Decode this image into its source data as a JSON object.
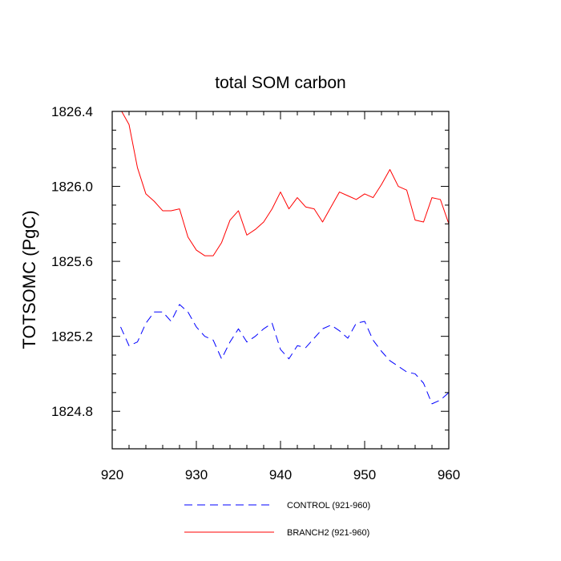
{
  "chart_data": {
    "type": "line",
    "title": "total SOM carbon",
    "xlabel": "",
    "ylabel": "TOTSOMC  (PgC)",
    "xlim": [
      920,
      960
    ],
    "ylim": [
      1824.6,
      1826.4
    ],
    "x_ticks": [
      920,
      930,
      940,
      950,
      960
    ],
    "x_tick_labels": [
      "920",
      "930",
      "940",
      "950",
      "960"
    ],
    "y_ticks": [
      1824.8,
      1825.2,
      1825.6,
      1826.0,
      1826.4
    ],
    "y_tick_labels": [
      "1824.8",
      "1825.2",
      "1825.6",
      "1826.0",
      "1826.4"
    ],
    "series": [
      {
        "name": "CONTROL (921-960)",
        "color": "#0000ff",
        "dash": "dashed",
        "x": [
          921,
          922,
          923,
          924,
          925,
          926,
          927,
          928,
          929,
          930,
          931,
          932,
          933,
          934,
          935,
          936,
          937,
          938,
          939,
          940,
          941,
          942,
          943,
          944,
          945,
          946,
          947,
          948,
          949,
          950,
          951,
          952,
          953,
          954,
          955,
          956,
          957,
          958,
          959,
          960
        ],
        "values": [
          1825.25,
          1825.15,
          1825.17,
          1825.27,
          1825.33,
          1825.33,
          1825.28,
          1825.37,
          1825.33,
          1825.25,
          1825.2,
          1825.18,
          1825.08,
          1825.17,
          1825.24,
          1825.17,
          1825.2,
          1825.24,
          1825.27,
          1825.13,
          1825.08,
          1825.15,
          1825.14,
          1825.19,
          1825.24,
          1825.26,
          1825.23,
          1825.19,
          1825.27,
          1825.28,
          1825.18,
          1825.12,
          1825.07,
          1825.04,
          1825.01,
          1825.0,
          1824.95,
          1824.84,
          1824.86,
          1824.9
        ]
      },
      {
        "name": "BRANCH2 (921-960)",
        "color": "#ff0000",
        "dash": "solid",
        "x": [
          921,
          922,
          923,
          924,
          925,
          926,
          927,
          928,
          929,
          930,
          931,
          932,
          933,
          934,
          935,
          936,
          937,
          938,
          939,
          940,
          941,
          942,
          943,
          944,
          945,
          946,
          947,
          948,
          949,
          950,
          951,
          952,
          953,
          954,
          955,
          956,
          957,
          958,
          959,
          960
        ],
        "values": [
          1826.41,
          1826.33,
          1826.1,
          1825.96,
          1825.92,
          1825.87,
          1825.87,
          1825.88,
          1825.73,
          1825.66,
          1825.63,
          1825.63,
          1825.7,
          1825.82,
          1825.87,
          1825.74,
          1825.77,
          1825.81,
          1825.88,
          1825.97,
          1825.88,
          1825.94,
          1825.89,
          1825.88,
          1825.81,
          1825.89,
          1825.97,
          1825.95,
          1825.93,
          1825.96,
          1825.94,
          1826.01,
          1826.09,
          1826.0,
          1825.98,
          1825.82,
          1825.81,
          1825.94,
          1825.93,
          1825.8
        ]
      }
    ],
    "legend_position": "bottom-center"
  }
}
